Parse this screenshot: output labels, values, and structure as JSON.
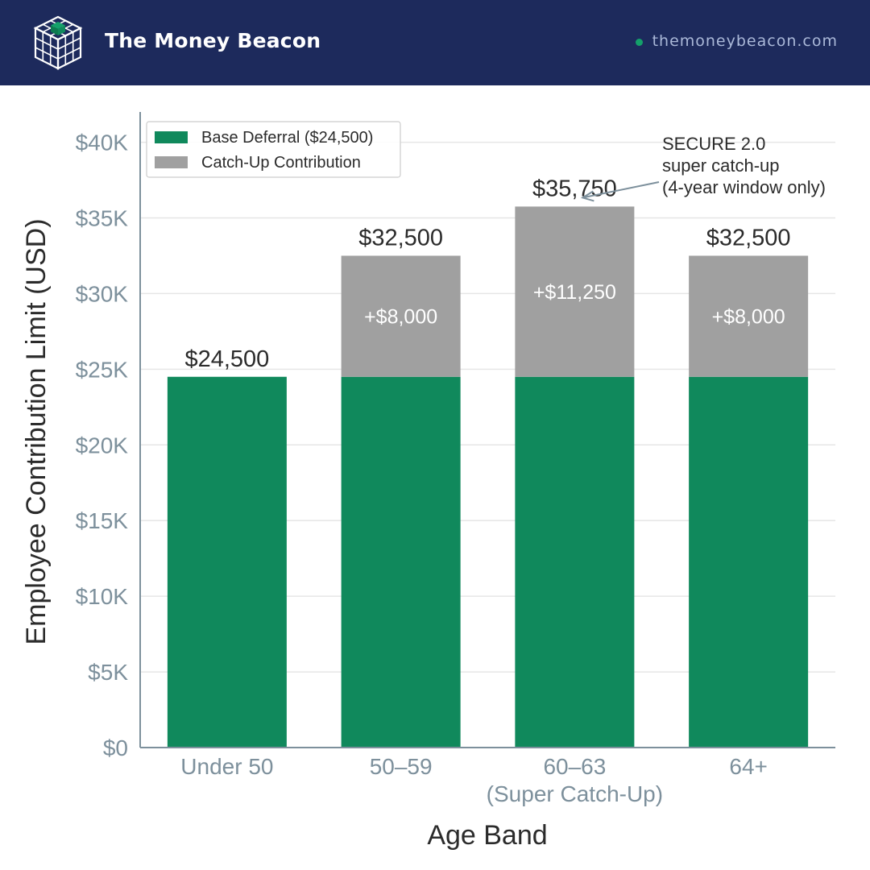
{
  "header": {
    "brand": "The Money Beacon",
    "site": "themoneybeacon.com",
    "logo_icon": "cube-grid-icon"
  },
  "colors": {
    "header_bg": "#1d2a5c",
    "base": "#10895c",
    "catch_up": "#a0a0a0",
    "tick_text": "#7d909c",
    "axis_line": "#7d909c",
    "grid": "#e6e6e6",
    "accent_dot": "#14a06a"
  },
  "chart_data": {
    "type": "bar",
    "stacked": true,
    "categories": [
      "Under 50",
      "50–59",
      "60–63",
      "64+"
    ],
    "category_sublabels": [
      "",
      "",
      "(Super Catch-Up)",
      ""
    ],
    "series": [
      {
        "name": "Base Deferral ($24,500)",
        "values": [
          24500,
          24500,
          24500,
          24500
        ]
      },
      {
        "name": "Catch-Up Contribution",
        "values": [
          0,
          8000,
          11250,
          8000
        ]
      }
    ],
    "total_labels": [
      "$24,500",
      "$32,500",
      "$35,750",
      "$32,500"
    ],
    "segment_labels": [
      "",
      "+$8,000",
      "+$11,250",
      "+$8,000"
    ],
    "xlabel": "Age Band",
    "ylabel": "Employee Contribution Limit (USD)",
    "ylim": [
      0,
      42000
    ],
    "yticks": [
      0,
      5000,
      10000,
      15000,
      20000,
      25000,
      30000,
      35000,
      40000
    ],
    "ytick_labels": [
      "$0",
      "$5K",
      "$10K",
      "$15K",
      "$20K",
      "$25K",
      "$30K",
      "$35K",
      "$40K"
    ],
    "grid": true,
    "legend_position": "top-left",
    "annotation": {
      "lines": [
        "SECURE 2.0",
        "super catch-up",
        "(4-year window only)"
      ],
      "target_category": "60–63"
    }
  }
}
